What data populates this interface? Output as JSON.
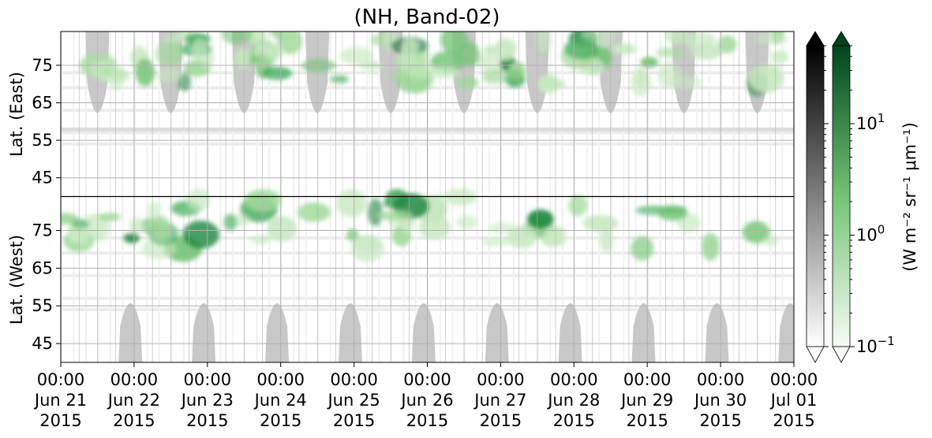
{
  "chart_data": {
    "type": "heatmap",
    "title": "(NH, Band-02)",
    "panels": [
      {
        "ylabel": "Lat. (East)",
        "yticks": [
          45,
          55,
          65,
          75
        ],
        "ylim": [
          40,
          84
        ]
      },
      {
        "ylabel": "Lat. (West)",
        "yticks": [
          75,
          65,
          55,
          45
        ],
        "ylim": [
          84,
          40
        ]
      }
    ],
    "x_ticks": [
      [
        "00:00",
        "Jun 21",
        "2015"
      ],
      [
        "00:00",
        "Jun 22",
        "2015"
      ],
      [
        "00:00",
        "Jun 23",
        "2015"
      ],
      [
        "00:00",
        "Jun 24",
        "2015"
      ],
      [
        "00:00",
        "Jun 25",
        "2015"
      ],
      [
        "00:00",
        "Jun 26",
        "2015"
      ],
      [
        "00:00",
        "Jun 27",
        "2015"
      ],
      [
        "00:00",
        "Jun 28",
        "2015"
      ],
      [
        "00:00",
        "Jun 29",
        "2015"
      ],
      [
        "00:00",
        "Jun 30",
        "2015"
      ],
      [
        "00:00",
        "Jul 01",
        "2015"
      ]
    ],
    "xlim": [
      "2015-06-21 00:00",
      "2015-07-01 00:00"
    ],
    "grid": true,
    "colorbars": [
      {
        "cmap": "Greys",
        "color_low": "#ffffff",
        "color_high": "#000000",
        "scale": "log",
        "range": [
          0.1,
          50
        ],
        "extend": "both"
      },
      {
        "cmap": "Greens",
        "color_low": "#f7fcf5",
        "color_high": "#00441b",
        "scale": "log",
        "range": [
          0.1,
          50
        ],
        "extend": "both"
      }
    ],
    "colorbar_ticks": [
      {
        "base": "10",
        "exp": "1",
        "value": 10
      },
      {
        "base": "10",
        "exp": "0",
        "value": 1
      },
      {
        "base": "10",
        "exp": "−1",
        "value": 0.1
      }
    ],
    "colorbar_label": "(W m⁻² sr⁻¹ μm⁻¹)",
    "nightside_mask_color": "#c8c8c8",
    "band_color": "#3f9e55"
  }
}
